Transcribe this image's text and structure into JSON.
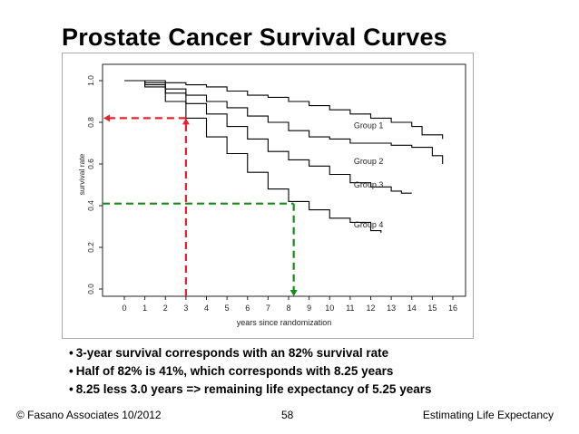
{
  "slide": {
    "title": "Prostate Cancer Survival Curves",
    "bullets": [
      "3-year survival corresponds with an 82% survival rate",
      "Half of 82% is 41%, which corresponds with 8.25 years",
      "8.25 less 3.0 years => remaining life expectancy of 5.25 years"
    ],
    "bullet_glyph": "•",
    "footer": {
      "left": "© Fasano Associates 10/2012",
      "page": "58",
      "right": "Estimating Life Expectancy"
    }
  },
  "chart_data": {
    "type": "line",
    "title": "",
    "xlabel": "years since randomization",
    "ylabel": "survival rate",
    "xlim": [
      0,
      16
    ],
    "ylim": [
      0,
      1.0
    ],
    "xticks": [
      0,
      1,
      2,
      3,
      4,
      5,
      6,
      7,
      8,
      9,
      10,
      11,
      12,
      13,
      14,
      15,
      16
    ],
    "yticks": [
      "0.0",
      "0.2",
      "0.4",
      "0.6",
      "0.8",
      "1.0"
    ],
    "yvals": [
      0,
      0.2,
      0.4,
      0.6,
      0.8,
      1.0
    ],
    "series": [
      {
        "name": "Group 1",
        "x": [
          0,
          1,
          2,
          3,
          4,
          5,
          6,
          7,
          8,
          9,
          10,
          11,
          12,
          13,
          14,
          14.5,
          15,
          15.5
        ],
        "y": [
          1.0,
          1.0,
          0.99,
          0.98,
          0.97,
          0.95,
          0.93,
          0.92,
          0.9,
          0.88,
          0.86,
          0.84,
          0.82,
          0.8,
          0.78,
          0.74,
          0.74,
          0.72
        ]
      },
      {
        "name": "Group 2",
        "x": [
          0,
          1,
          2,
          3,
          4,
          5,
          6,
          7,
          8,
          9,
          10,
          11,
          12,
          13,
          14,
          15,
          15.5
        ],
        "y": [
          1.0,
          0.99,
          0.96,
          0.93,
          0.9,
          0.87,
          0.83,
          0.8,
          0.76,
          0.73,
          0.72,
          0.7,
          0.7,
          0.69,
          0.68,
          0.64,
          0.6
        ]
      },
      {
        "name": "Group 3",
        "x": [
          0,
          1,
          2,
          3,
          4,
          5,
          6,
          7,
          8,
          9,
          10,
          11,
          12,
          13,
          13.5,
          14
        ],
        "y": [
          1.0,
          0.98,
          0.94,
          0.89,
          0.84,
          0.78,
          0.72,
          0.66,
          0.62,
          0.59,
          0.55,
          0.51,
          0.49,
          0.47,
          0.46,
          0.46
        ]
      },
      {
        "name": "Group 4",
        "x": [
          0,
          1,
          2,
          3,
          4,
          5,
          6,
          7,
          8,
          9,
          10,
          11,
          12,
          12.5
        ],
        "y": [
          1.0,
          0.97,
          0.9,
          0.82,
          0.73,
          0.65,
          0.56,
          0.48,
          0.42,
          0.38,
          0.34,
          0.32,
          0.28,
          0.27
        ]
      }
    ],
    "annotations": [
      {
        "type": "arrow",
        "color": "#e8212b",
        "x": 3,
        "y": 0.82,
        "label": "3-year survival at 0.82"
      },
      {
        "type": "arrow",
        "color": "#1a8a1a",
        "x": 8.25,
        "y": 0.41,
        "label": "0.41 survival at 8.25 years"
      }
    ],
    "colors": {
      "curve": "#000000",
      "red": "#e8212b",
      "green": "#1a8a1a"
    }
  }
}
